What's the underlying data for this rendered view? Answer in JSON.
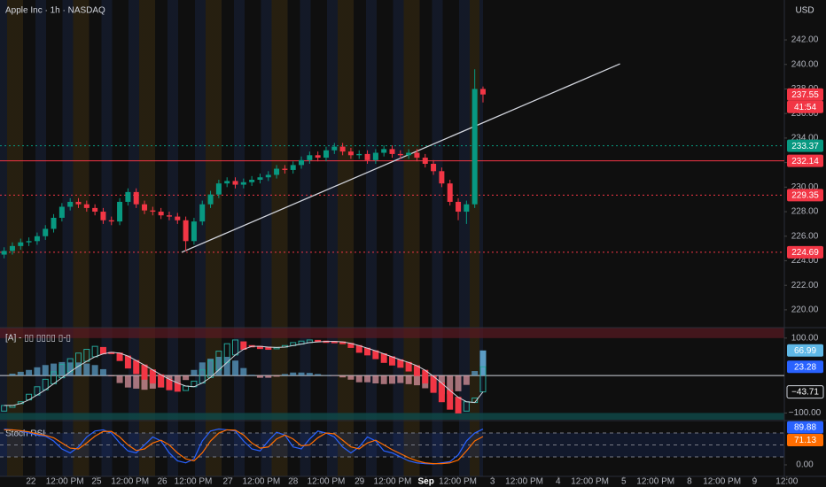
{
  "chart_data": [
    {
      "type": "candlestick",
      "title": "Apple Inc · 1h · NASDAQ",
      "currency": "USD",
      "countdown": "41:54",
      "up_color": "#089981",
      "down_color": "#f23645",
      "xlim": [
        0,
        190
      ],
      "xticks": [
        {
          "value": 7.5,
          "label": "22"
        },
        {
          "value": 15.7,
          "label": "12:00 PM"
        },
        {
          "value": 23.4,
          "label": "25"
        },
        {
          "value": 31.5,
          "label": "12:00 PM"
        },
        {
          "value": 39.3,
          "label": "26"
        },
        {
          "value": 46.8,
          "label": "12:00 PM"
        },
        {
          "value": 55.2,
          "label": "27"
        },
        {
          "value": 63.3,
          "label": "12:00 PM"
        },
        {
          "value": 71.0,
          "label": "28"
        },
        {
          "value": 79.0,
          "label": "12:00 PM"
        },
        {
          "value": 87.1,
          "label": "29"
        },
        {
          "value": 95.1,
          "label": "12:00 PM"
        },
        {
          "value": 103.2,
          "label": "Sep"
        },
        {
          "value": 110.9,
          "label": "12:00 PM"
        },
        {
          "value": 119.3,
          "label": "3"
        },
        {
          "value": 127.0,
          "label": "12:00 PM"
        },
        {
          "value": 135.2,
          "label": "4"
        },
        {
          "value": 142.9,
          "label": "12:00 PM"
        },
        {
          "value": 151.1,
          "label": "5"
        },
        {
          "value": 158.8,
          "label": "12:00 PM"
        },
        {
          "value": 167.0,
          "label": "8"
        },
        {
          "value": 174.9,
          "label": "12:00 PM"
        },
        {
          "value": 182.8,
          "label": "9"
        },
        {
          "value": 190.6,
          "label": "12:00"
        }
      ],
      "ylim": [
        218.55,
        245.25
      ],
      "yticks": [
        {
          "value": 242,
          "label": "242.00"
        },
        {
          "value": 240,
          "label": "240.00"
        },
        {
          "value": 238,
          "label": "238.00"
        },
        {
          "value": 236,
          "label": "236.00"
        },
        {
          "value": 234,
          "label": "234.00"
        },
        {
          "value": 232,
          "label": "232.00"
        },
        {
          "value": 230,
          "label": "230.00"
        },
        {
          "value": 228,
          "label": "228.00"
        },
        {
          "value": 226,
          "label": "226.00"
        },
        {
          "value": 224,
          "label": "224.00"
        },
        {
          "value": 222,
          "label": "222.00"
        },
        {
          "value": 220,
          "label": "220.00"
        }
      ],
      "hlines": [
        {
          "value": 233.37,
          "color": "#089981",
          "dash": "2 3"
        },
        {
          "value": 232.14,
          "color": "#f23645",
          "dash": "none"
        },
        {
          "value": 229.35,
          "color": "#f23645",
          "dash": "2 3"
        },
        {
          "value": 224.69,
          "color": "#f23645",
          "dash": "2 3"
        }
      ],
      "trendline": {
        "x": [
          44,
          150.2
        ],
        "y": [
          224.69,
          240.05
        ],
        "color": "#d1d4dc"
      },
      "x": [
        1,
        3,
        5,
        7,
        9,
        11,
        13,
        15,
        17,
        19,
        21,
        23,
        25,
        27,
        29,
        31,
        33,
        35,
        37,
        39,
        41,
        43,
        45,
        47,
        49,
        51,
        53,
        55,
        57,
        59,
        61,
        63,
        65,
        67,
        69,
        71,
        73,
        75,
        77,
        79,
        81,
        83,
        85,
        87,
        89,
        91,
        93,
        95,
        97,
        99,
        101,
        103,
        105,
        107,
        109,
        111,
        113,
        115,
        117
      ],
      "open": [
        224.5,
        224.8,
        225.2,
        225.5,
        225.6,
        226.0,
        226.6,
        227.5,
        228.4,
        228.8,
        228.6,
        228.3,
        228.0,
        227.3,
        227.2,
        228.8,
        229.6,
        228.6,
        228.1,
        228.0,
        227.7,
        227.6,
        227.3,
        225.6,
        227.2,
        228.6,
        229.4,
        230.3,
        230.5,
        230.2,
        230.4,
        230.6,
        230.8,
        231.0,
        231.5,
        231.4,
        231.8,
        232.2,
        232.6,
        232.4,
        233.0,
        233.3,
        232.9,
        232.6,
        232.7,
        232.2,
        232.8,
        233.1,
        232.7,
        232.6,
        232.8,
        232.4,
        231.9,
        231.3,
        230.3,
        228.8,
        228.0,
        228.6,
        238.0
      ],
      "high": [
        225.1,
        225.5,
        225.8,
        225.9,
        226.3,
        226.9,
        227.8,
        228.7,
        229.1,
        229.1,
        228.9,
        228.6,
        228.3,
        227.6,
        229.1,
        229.9,
        229.9,
        228.9,
        228.4,
        228.3,
        228.0,
        227.9,
        227.6,
        227.5,
        228.9,
        229.7,
        230.6,
        230.8,
        230.8,
        230.7,
        230.9,
        231.1,
        231.3,
        231.8,
        231.8,
        232.1,
        232.5,
        232.9,
        232.9,
        233.3,
        233.6,
        233.6,
        233.2,
        233.0,
        233.0,
        233.1,
        233.4,
        233.4,
        233.0,
        233.1,
        233.1,
        232.7,
        232.2,
        231.6,
        230.6,
        229.1,
        228.9,
        239.6,
        238.2
      ],
      "low": [
        224.2,
        224.5,
        224.9,
        225.2,
        225.3,
        225.7,
        226.3,
        227.2,
        228.1,
        228.3,
        228.0,
        227.7,
        227.0,
        226.9,
        226.9,
        228.5,
        228.3,
        227.8,
        227.7,
        227.4,
        227.3,
        227.0,
        224.8,
        225.3,
        226.9,
        228.3,
        229.1,
        230.0,
        229.9,
        229.9,
        230.1,
        230.3,
        230.5,
        230.7,
        231.1,
        231.1,
        231.5,
        231.9,
        232.1,
        232.1,
        232.7,
        232.6,
        232.3,
        232.3,
        231.9,
        231.9,
        232.5,
        232.4,
        232.3,
        232.3,
        232.1,
        231.6,
        231.0,
        230.0,
        228.5,
        227.3,
        227.0,
        228.3,
        236.9
      ],
      "close": [
        224.8,
        225.2,
        225.5,
        225.6,
        226.0,
        226.6,
        227.5,
        228.4,
        228.8,
        228.6,
        228.3,
        228.0,
        227.3,
        227.2,
        228.8,
        229.6,
        228.6,
        228.1,
        228.0,
        227.7,
        227.6,
        227.3,
        225.6,
        227.2,
        228.6,
        229.4,
        230.3,
        230.5,
        230.2,
        230.4,
        230.6,
        230.8,
        231.0,
        231.5,
        231.4,
        231.8,
        232.2,
        232.6,
        232.4,
        233.0,
        233.3,
        232.9,
        232.6,
        232.7,
        232.2,
        232.8,
        233.1,
        232.7,
        232.6,
        232.8,
        232.4,
        231.9,
        231.3,
        230.3,
        228.8,
        228.0,
        228.6,
        238.0,
        237.55
      ]
    },
    {
      "type": "oscillator",
      "title": "[A] - ▯▯ ▯▯▯▯ ▯-▯",
      "xlim": [
        0,
        190
      ],
      "ylim": [
        -118,
        128
      ],
      "yticks": [
        {
          "value": 100,
          "label": "100.00"
        },
        {
          "value": -100,
          "label": "−100.00"
        }
      ],
      "band_colors": [
        "#5a1a22",
        "#0f4a4a"
      ],
      "x": [
        1,
        3,
        5,
        7,
        9,
        11,
        13,
        15,
        17,
        19,
        21,
        23,
        25,
        27,
        29,
        31,
        33,
        35,
        37,
        39,
        41,
        43,
        45,
        47,
        49,
        51,
        53,
        55,
        57,
        59,
        61,
        63,
        65,
        67,
        69,
        71,
        73,
        75,
        77,
        79,
        81,
        83,
        85,
        87,
        89,
        91,
        93,
        95,
        97,
        99,
        101,
        103,
        105,
        107,
        109,
        111,
        113,
        115,
        117
      ],
      "histogram": {
        "color_up": "#5b9cc4",
        "color_down": "#d8939c",
        "tag_color": "#5fb8e6",
        "values": [
          0,
          5,
          10,
          15,
          22,
          28,
          32,
          36,
          35,
          35,
          32,
          28,
          17,
          -2,
          -20,
          -32,
          -35,
          -38,
          -35,
          -32,
          -28,
          -22,
          -12,
          15,
          35,
          45,
          50,
          50,
          40,
          20,
          2,
          -6,
          -6,
          -3,
          4,
          8,
          8,
          7,
          4,
          1,
          -1,
          -5,
          -11,
          -18,
          -18,
          -21,
          -23,
          -22,
          -20,
          -23,
          -26,
          -34,
          -43,
          -50,
          -50,
          -42,
          -25,
          12,
          66.99
        ]
      },
      "fast": {
        "color_up": "#26a69a",
        "color_down": "#f23645",
        "tag_color": "#2962ff",
        "values": [
          -95,
          -85,
          -70,
          -50,
          -30,
          -10,
          10,
          30,
          45,
          60,
          70,
          78,
          75,
          60,
          40,
          20,
          5,
          -10,
          -20,
          -30,
          -38,
          -42,
          -40,
          -15,
          15,
          40,
          65,
          85,
          95,
          90,
          80,
          72,
          70,
          72,
          80,
          88,
          92,
          95,
          94,
          92,
          90,
          85,
          75,
          62,
          55,
          45,
          35,
          28,
          22,
          12,
          0,
          -20,
          -45,
          -70,
          -90,
          -100,
          -95,
          -60,
          23.28
        ]
      },
      "signal": {
        "color": "#d1d4dc",
        "values": [
          -80,
          -80,
          -75,
          -65,
          -52,
          -38,
          -22,
          -6,
          10,
          25,
          38,
          50,
          58,
          62,
          60,
          52,
          40,
          28,
          15,
          2,
          -10,
          -20,
          -28,
          -30,
          -20,
          -5,
          15,
          35,
          55,
          70,
          78,
          78,
          76,
          75,
          76,
          80,
          84,
          88,
          90,
          91,
          91,
          90,
          86,
          80,
          73,
          66,
          58,
          50,
          42,
          35,
          26,
          14,
          -2,
          -20,
          -40,
          -58,
          -70,
          -72,
          -43.71
        ],
        "value_labels": [
          null,
          null,
          null,
          null,
          null,
          null,
          null,
          null,
          null,
          null,
          null,
          null,
          null,
          null,
          null,
          null,
          null,
          null,
          null,
          null,
          null,
          null,
          null,
          null,
          null,
          null,
          null,
          null,
          null,
          null,
          null,
          null,
          null,
          null,
          null,
          null,
          null,
          null,
          null,
          null,
          null,
          null,
          null,
          null,
          null,
          null,
          null,
          null,
          null,
          null,
          null,
          null,
          null,
          null,
          null,
          null,
          null,
          null,
          "−43.71"
        ]
      }
    },
    {
      "type": "line",
      "title": "Stoch RSI",
      "xlim": [
        0,
        190
      ],
      "ylim": [
        -29,
        109
      ],
      "yticks": [
        {
          "value": 0,
          "label": "0.00"
        }
      ],
      "levels": [
        80,
        50,
        20
      ],
      "band_color": "rgba(41,98,255,0.12)",
      "x": [
        1,
        3,
        5,
        7,
        9,
        11,
        13,
        15,
        17,
        19,
        21,
        23,
        25,
        27,
        29,
        31,
        33,
        35,
        37,
        39,
        41,
        43,
        45,
        47,
        49,
        51,
        53,
        55,
        57,
        59,
        61,
        63,
        65,
        67,
        69,
        71,
        73,
        75,
        77,
        79,
        81,
        83,
        85,
        87,
        89,
        91,
        93,
        95,
        97,
        99,
        101,
        103,
        105,
        107,
        109,
        111,
        113,
        115,
        117
      ],
      "series": [
        {
          "color": "#2962ff",
          "values": [
            90,
            88,
            85,
            80,
            75,
            72,
            60,
            40,
            30,
            45,
            70,
            85,
            88,
            80,
            55,
            35,
            30,
            50,
            70,
            60,
            30,
            10,
            5,
            15,
            60,
            85,
            90,
            88,
            85,
            60,
            40,
            35,
            60,
            82,
            75,
            45,
            40,
            65,
            85,
            80,
            70,
            45,
            30,
            45,
            70,
            60,
            35,
            30,
            20,
            10,
            5,
            3,
            2,
            5,
            8,
            25,
            60,
            80,
            89.88
          ]
        },
        {
          "color": "#ff6d00",
          "values": [
            88,
            88,
            86,
            83,
            78,
            74,
            68,
            55,
            42,
            40,
            55,
            72,
            84,
            84,
            70,
            50,
            36,
            40,
            55,
            62,
            50,
            30,
            15,
            10,
            30,
            60,
            80,
            88,
            87,
            75,
            55,
            42,
            45,
            65,
            75,
            65,
            48,
            50,
            68,
            80,
            78,
            62,
            45,
            40,
            55,
            62,
            50,
            38,
            28,
            18,
            10,
            5,
            3,
            3,
            5,
            12,
            35,
            60,
            71.13
          ]
        }
      ]
    }
  ]
}
